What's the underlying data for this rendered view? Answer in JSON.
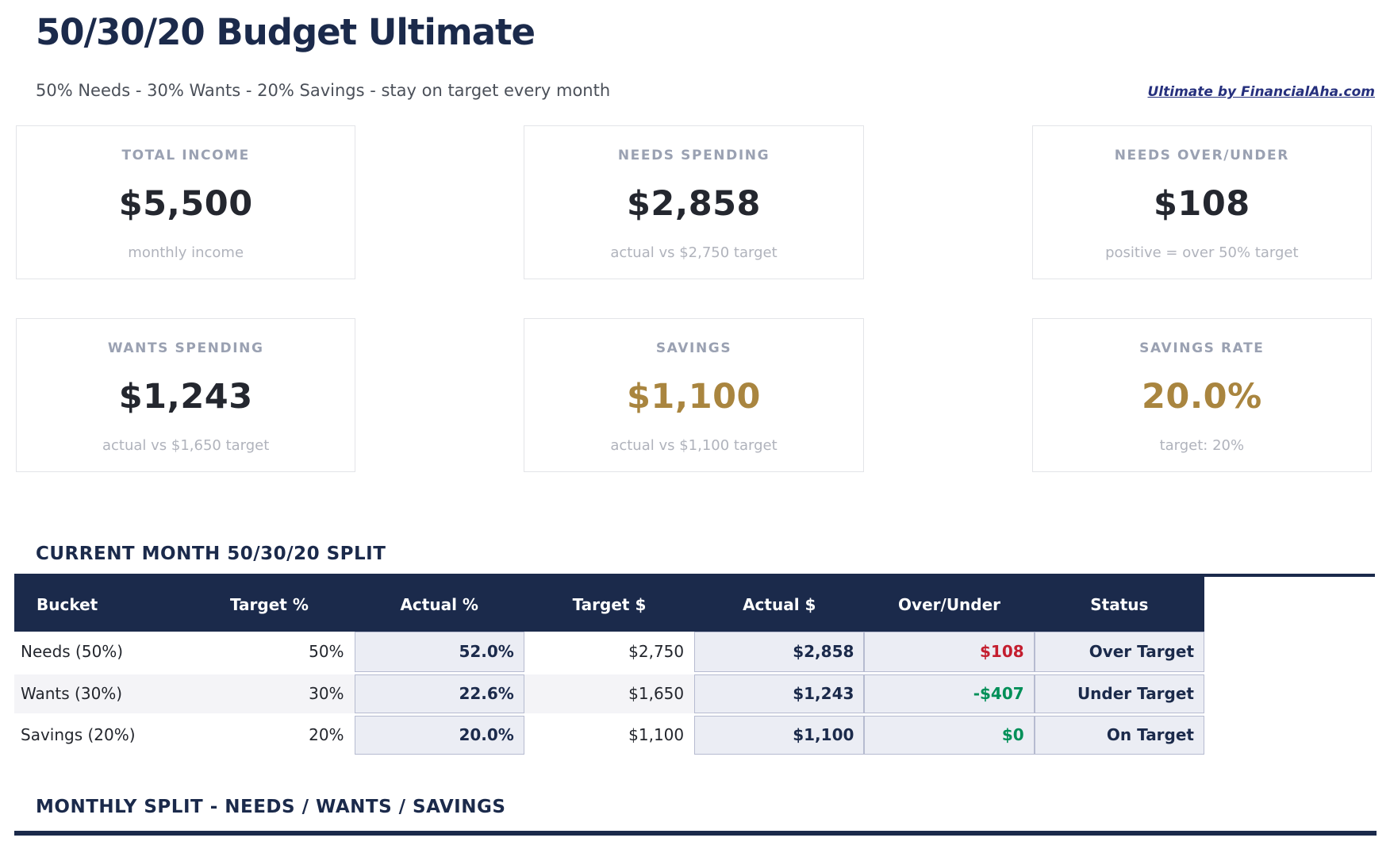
{
  "page": {
    "title": "50/30/20 Budget Ultimate",
    "subtitle": "50% Needs - 30% Wants - 20% Savings - stay on target every month",
    "brand_link": "Ultimate by FinancialAha.com"
  },
  "cards": [
    {
      "label": "TOTAL INCOME",
      "value": "$5,500",
      "note": "monthly income"
    },
    {
      "label": "NEEDS SPENDING",
      "value": "$2,858",
      "note": "actual vs $2,750 target"
    },
    {
      "label": "NEEDS OVER/UNDER",
      "value": "$108",
      "note": "positive = over 50% target"
    },
    {
      "label": "WANTS SPENDING",
      "value": "$1,243",
      "note": "actual vs $1,650 target"
    },
    {
      "label": "SAVINGS",
      "value": "$1,100",
      "note": "actual vs $1,100 target"
    },
    {
      "label": "SAVINGS RATE",
      "value": "20.0%",
      "note": "target: 20%"
    }
  ],
  "split_section": {
    "heading": "CURRENT MONTH 50/30/20 SPLIT",
    "table": {
      "columns": [
        "Bucket",
        "Target %",
        "Actual %",
        "Target $",
        "Actual $",
        "Over/Under",
        "Status"
      ],
      "rows": [
        {
          "bucket": "Needs (50%)",
          "target_pct": "50%",
          "actual_pct": "52.0%",
          "target_usd": "$2,750",
          "actual_usd": "$2,858",
          "over_under": "$108",
          "over_under_color": "red",
          "status": "Over Target"
        },
        {
          "bucket": "Wants (30%)",
          "target_pct": "30%",
          "actual_pct": "22.6%",
          "target_usd": "$1,650",
          "actual_usd": "$1,243",
          "over_under": "-$407",
          "over_under_color": "green",
          "status": "Under Target"
        },
        {
          "bucket": "Savings (20%)",
          "target_pct": "20%",
          "actual_pct": "20.0%",
          "target_usd": "$1,100",
          "actual_usd": "$1,100",
          "over_under": "$0",
          "over_under_color": "green",
          "status": "On Target"
        }
      ]
    }
  },
  "monthly_section": {
    "heading": "MONTHLY SPLIT - NEEDS / WANTS / SAVINGS"
  },
  "colors": {
    "navy": "#1b2a4b",
    "gold": "#a9853f",
    "red": "#c41e2f",
    "green": "#008f58",
    "hl_bg": "#ebedf4",
    "hl_border": "#b6bbd0"
  }
}
